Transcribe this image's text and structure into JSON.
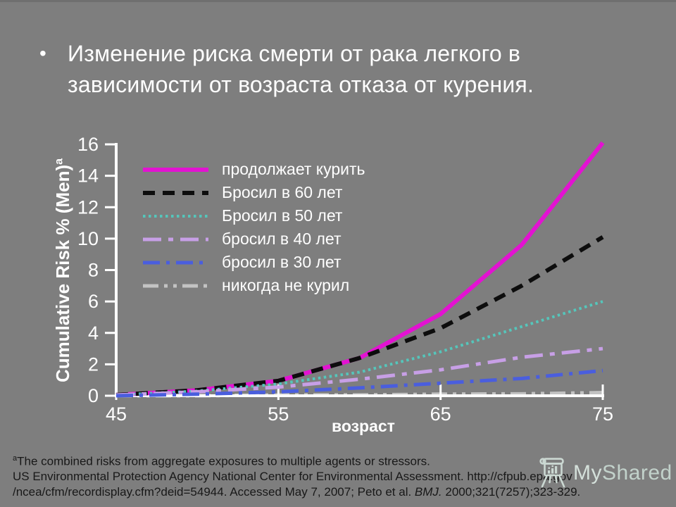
{
  "slide": {
    "title_bullet": "•",
    "title_lines": [
      "Изменение  риска смерти от рака легкого в",
      "зависимости от возраста отказа от курения."
    ]
  },
  "chart_data": {
    "type": "line",
    "x": [
      45,
      50,
      55,
      60,
      65,
      70,
      75
    ],
    "xlabel": "возраст",
    "ylabel": "Cumulative Risk % (Men)",
    "ylabel_sup": "a",
    "xlim": [
      45,
      75
    ],
    "ylim": [
      0,
      16
    ],
    "x_ticks": [
      45,
      55,
      65,
      75
    ],
    "y_ticks": [
      0,
      2,
      4,
      6,
      8,
      10,
      12,
      14,
      16
    ],
    "grid": false,
    "legend_position": "upper-left-inside",
    "axis_color": "#ffffff",
    "tick_label_color": "#ffffff",
    "series": [
      {
        "name": "continues-smoking",
        "label": "продолжает курить",
        "color": "#e312d2",
        "dash": "",
        "width": 6,
        "values": [
          0.05,
          0.35,
          0.95,
          2.4,
          5.2,
          9.6,
          16.1
        ]
      },
      {
        "name": "quit-at-60",
        "label": "Бросил в 60 лет",
        "color": "#0d0d0d",
        "dash": "17 11",
        "width": 6,
        "values": [
          0.05,
          0.35,
          0.95,
          2.4,
          4.3,
          7.0,
          10.1
        ]
      },
      {
        "name": "quit-at-50",
        "label": "Бросил в 50 лет",
        "color": "#55c6bb",
        "dash": "3.5 4.5",
        "width": 4,
        "values": [
          0.05,
          0.3,
          0.75,
          1.5,
          2.8,
          4.4,
          6.0
        ]
      },
      {
        "name": "quit-at-40",
        "label": "бросил в 40 лет",
        "color": "#c79fe6",
        "dash": "26 10 7 10",
        "width": 5,
        "values": [
          0.05,
          0.25,
          0.55,
          1.05,
          1.65,
          2.45,
          3.0
        ]
      },
      {
        "name": "quit-at-30",
        "label": "бросил в 30 лет",
        "color": "#4a5ede",
        "dash": "24 9 5 9",
        "width": 5,
        "values": [
          0.0,
          0.1,
          0.25,
          0.5,
          0.8,
          1.1,
          1.6
        ]
      },
      {
        "name": "never-smoked",
        "label": "никогда не курил",
        "color": "#c3c3c3",
        "dash": "22 8 5 8 5 8",
        "width": 5,
        "values": [
          0.0,
          0.0,
          0.05,
          0.05,
          0.1,
          0.12,
          0.2
        ]
      }
    ]
  },
  "footnote": {
    "sup": "a",
    "line1": "The combined risks from aggregate exposures to multiple agents or stressors.",
    "line2": "US Environmental Protection Agency National Center for Environmental Assessment. http://cfpub.epa.gov",
    "line3_pre": "/ncea/cfm/recordisplay.cfm?deid=54944. Accessed May 7, 2007; Peto et al. ",
    "line3_italic": "BMJ.",
    "line3_post": " 2000;321(7257);323-329."
  },
  "logo": {
    "text_my": "My",
    "text_shared": "Shared",
    "color": "#cbd8d2"
  }
}
